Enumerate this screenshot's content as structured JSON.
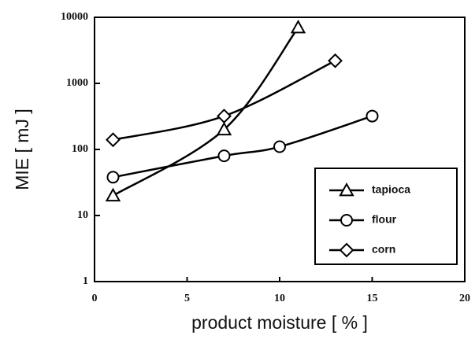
{
  "chart_data": {
    "type": "line",
    "log_y": true,
    "xlabel": "product moisture  [ % ]",
    "ylabel": "MIE [ mJ ]",
    "xlim": [
      0,
      20
    ],
    "xticks": [
      0,
      5,
      10,
      15,
      20
    ],
    "ylim": [
      1,
      10000
    ],
    "yticks": [
      1,
      10,
      100,
      1000,
      10000
    ],
    "legend": "lower right",
    "series": [
      {
        "name": "tapioca",
        "color": "#000000",
        "marker": "triangle",
        "x": [
          1,
          7,
          11
        ],
        "values": [
          20,
          200,
          7000
        ]
      },
      {
        "name": "flour",
        "color": "#000000",
        "marker": "circle",
        "x": [
          1,
          7,
          10,
          15
        ],
        "values": [
          38,
          80,
          110,
          320
        ]
      },
      {
        "name": "corn",
        "color": "#000000",
        "marker": "diamond",
        "x": [
          1,
          7,
          13
        ],
        "values": [
          140,
          320,
          2200
        ]
      }
    ]
  }
}
